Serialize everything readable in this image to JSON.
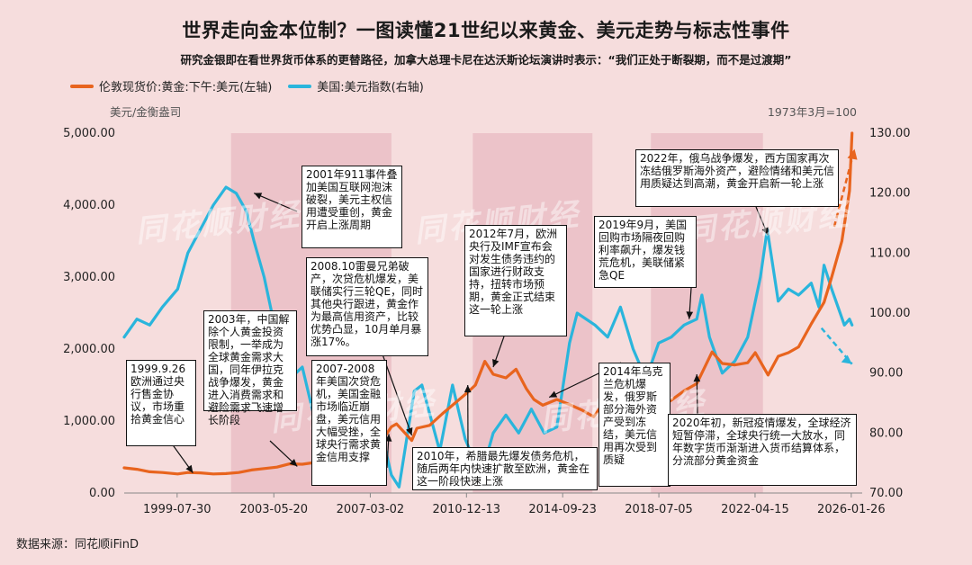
{
  "title": "世界走向金本位制？一图读懂21世纪以来黄金、美元走势与标志性事件",
  "subtitle": "研究金银即在看世界货币体系的更替路径，加拿大总理卡尼在达沃斯论坛演讲时表示：“我们正处于断裂期，而不是过渡期”",
  "source": "数据来源：同花顺iFinD",
  "watermark": "同花顺财经",
  "colors": {
    "gold": "#e8641e",
    "usd": "#2ab5dc",
    "shade": "#e8b9c2",
    "background": "#f6dddd"
  },
  "chart_data": {
    "type": "line",
    "title": "世界走向金本位制？一图读懂21世纪以来黄金、美元走势与标志性事件",
    "left_axis_label": "美元/金衡盎司",
    "right_axis_label": "1973年3月=100",
    "left_ylim": [
      0,
      5000
    ],
    "right_ylim": [
      70,
      130
    ],
    "left_ticks": [
      "0.00",
      "1,000.00",
      "2,000.00",
      "3,000.00",
      "4,000.00",
      "5,000.00"
    ],
    "right_ticks": [
      "70.00",
      "80.00",
      "90.00",
      "100.00",
      "110.00",
      "120.00",
      "130.00"
    ],
    "x_ticks": [
      "1999-07-30",
      "2003-05-20",
      "2007-03-02",
      "2010-12-13",
      "2014-09-23",
      "2018-07-05",
      "2022-04-15",
      "2026-01-26"
    ],
    "x_range": [
      1997.5,
      2026.5
    ],
    "x_tick_years": [
      1999.58,
      2003.38,
      2007.17,
      2010.95,
      2014.73,
      2018.51,
      2022.29,
      2026.07
    ],
    "shaded_periods": [
      [
        2001.7,
        2008.0
      ],
      [
        2011.2,
        2015.9
      ],
      [
        2018.2,
        2022.6
      ]
    ],
    "series": [
      {
        "name": "伦敦现货价:黄金:下午:美元(左轴)",
        "axis": "left",
        "x": [
          1997.5,
          1998.0,
          1998.5,
          1999.0,
          1999.6,
          2000.0,
          2000.5,
          2001.0,
          2001.5,
          2002.0,
          2002.5,
          2003.0,
          2003.5,
          2004.0,
          2004.5,
          2005.0,
          2005.5,
          2006.0,
          2006.4,
          2006.8,
          2007.0,
          2007.5,
          2008.0,
          2008.2,
          2008.8,
          2009.0,
          2009.5,
          2010.0,
          2010.5,
          2011.0,
          2011.3,
          2011.67,
          2012.0,
          2012.5,
          2012.9,
          2013.3,
          2013.6,
          2013.95,
          2014.5,
          2015.0,
          2015.5,
          2015.95,
          2016.5,
          2017.0,
          2017.5,
          2018.0,
          2018.6,
          2019.0,
          2019.5,
          2020.0,
          2020.6,
          2021.0,
          2021.5,
          2022.0,
          2022.3,
          2022.8,
          2023.2,
          2023.6,
          2024.0,
          2024.5,
          2025.0,
          2025.3,
          2025.7,
          2026.0,
          2026.1
        ],
        "values": [
          350,
          330,
          295,
          285,
          265,
          285,
          280,
          265,
          270,
          285,
          320,
          340,
          360,
          405,
          400,
          425,
          430,
          550,
          680,
          600,
          640,
          660,
          920,
          960,
          730,
          900,
          940,
          1100,
          1250,
          1400,
          1500,
          1830,
          1650,
          1600,
          1720,
          1450,
          1300,
          1220,
          1300,
          1230,
          1150,
          1060,
          1330,
          1200,
          1260,
          1320,
          1200,
          1290,
          1420,
          1520,
          1960,
          1800,
          1780,
          1810,
          1950,
          1640,
          1900,
          1950,
          2030,
          2350,
          2650,
          3000,
          3500,
          4200,
          5000
        ]
      },
      {
        "name": "美国:美元指数(右轴)",
        "axis": "right",
        "x": [
          1997.5,
          1998.0,
          1998.5,
          1999.0,
          1999.6,
          2000.0,
          2000.5,
          2001.0,
          2001.5,
          2001.9,
          2002.3,
          2002.6,
          2003.0,
          2003.5,
          2004.0,
          2004.5,
          2005.0,
          2005.5,
          2006.0,
          2006.5,
          2007.0,
          2007.5,
          2008.0,
          2008.3,
          2008.9,
          2009.2,
          2009.9,
          2010.4,
          2010.9,
          2011.3,
          2011.6,
          2012.0,
          2012.5,
          2013.0,
          2013.5,
          2014.0,
          2014.5,
          2015.0,
          2015.3,
          2016.0,
          2016.5,
          2017.0,
          2017.5,
          2018.0,
          2018.5,
          2019.0,
          2019.5,
          2020.0,
          2020.2,
          2020.5,
          2021.0,
          2021.5,
          2022.0,
          2022.5,
          2022.77,
          2023.2,
          2023.6,
          2024.0,
          2024.5,
          2024.8,
          2025.0,
          2025.3,
          2025.8,
          2026.0,
          2026.1
        ],
        "values": [
          96,
          99,
          98,
          101,
          104,
          110,
          114,
          118,
          121,
          120,
          117,
          112,
          106,
          96,
          89,
          91,
          82,
          90,
          89,
          85,
          84,
          82,
          73,
          71,
          87,
          88,
          77,
          88,
          79,
          75,
          74,
          80,
          83,
          80,
          84,
          80,
          81,
          95,
          100,
          98,
          96,
          101,
          94,
          89,
          95,
          96,
          98,
          99,
          103,
          96,
          90,
          92,
          96,
          106,
          114,
          102,
          104,
          103,
          105,
          101,
          108,
          104,
          98,
          99,
          98
        ]
      }
    ]
  },
  "annotations": [
    {
      "id": "a1999",
      "text": "1999.9.26欧洲通过央行售金协议，市场重拾黄金信心"
    },
    {
      "id": "a2001",
      "text": "2001年911事件叠加美国互联网泡沫破裂，美元主权信用遭受重创，黄金开启上涨周期"
    },
    {
      "id": "a2003",
      "text": "2003年，中国解除个人黄金投资限制，一举成为全球黄金需求大国，同年伊拉克战争爆发，黄金进入消费需求和避险需求飞速增长阶段"
    },
    {
      "id": "a2008",
      "text": "2008.10雷曼兄弟破产，次贷危机爆发，美联储实行三轮QE，同时其他央行跟进，黄金作为最高信用资产，比较优势凸显，10月单月暴涨17%。"
    },
    {
      "id": "a2007",
      "text": "2007-2008年美国次贷危机，美国金融市场临近崩盘，美元信用大幅受挫，全球央行需求黄金信用支撑"
    },
    {
      "id": "a2010",
      "text": "2010年，希腊最先爆发债务危机，随后两年内快速扩散至欧洲，黄金在这一阶段快速上涨"
    },
    {
      "id": "a2012",
      "text": "2012年7月，欧洲央行及IMF宣布会对发生债务违约的国家进行财政支持，扭转市场预期，黄金正式结束这一轮上涨"
    },
    {
      "id": "a2014",
      "text": "2014年乌克兰危机爆发，俄罗斯部分海外资产受到冻结，美元信用再次受到质疑"
    },
    {
      "id": "a2019",
      "text": "2019年9月，美国回购市场隔夜回购利率飙升，爆发钱荒危机，美联储紧急QE"
    },
    {
      "id": "a2020",
      "text": "2020年初，新冠疫情爆发，全球经济短暂停滞，全球央行统一大放水，同年数字货币渐渐进入货币结算体系，分流部分黄金资金"
    },
    {
      "id": "a2022",
      "text": "2022年，俄乌战争爆发，西方国家再次冻结俄罗斯海外资产，避险情绪和美元信用质疑达到高潮，黄金开启新一轮上涨"
    }
  ]
}
